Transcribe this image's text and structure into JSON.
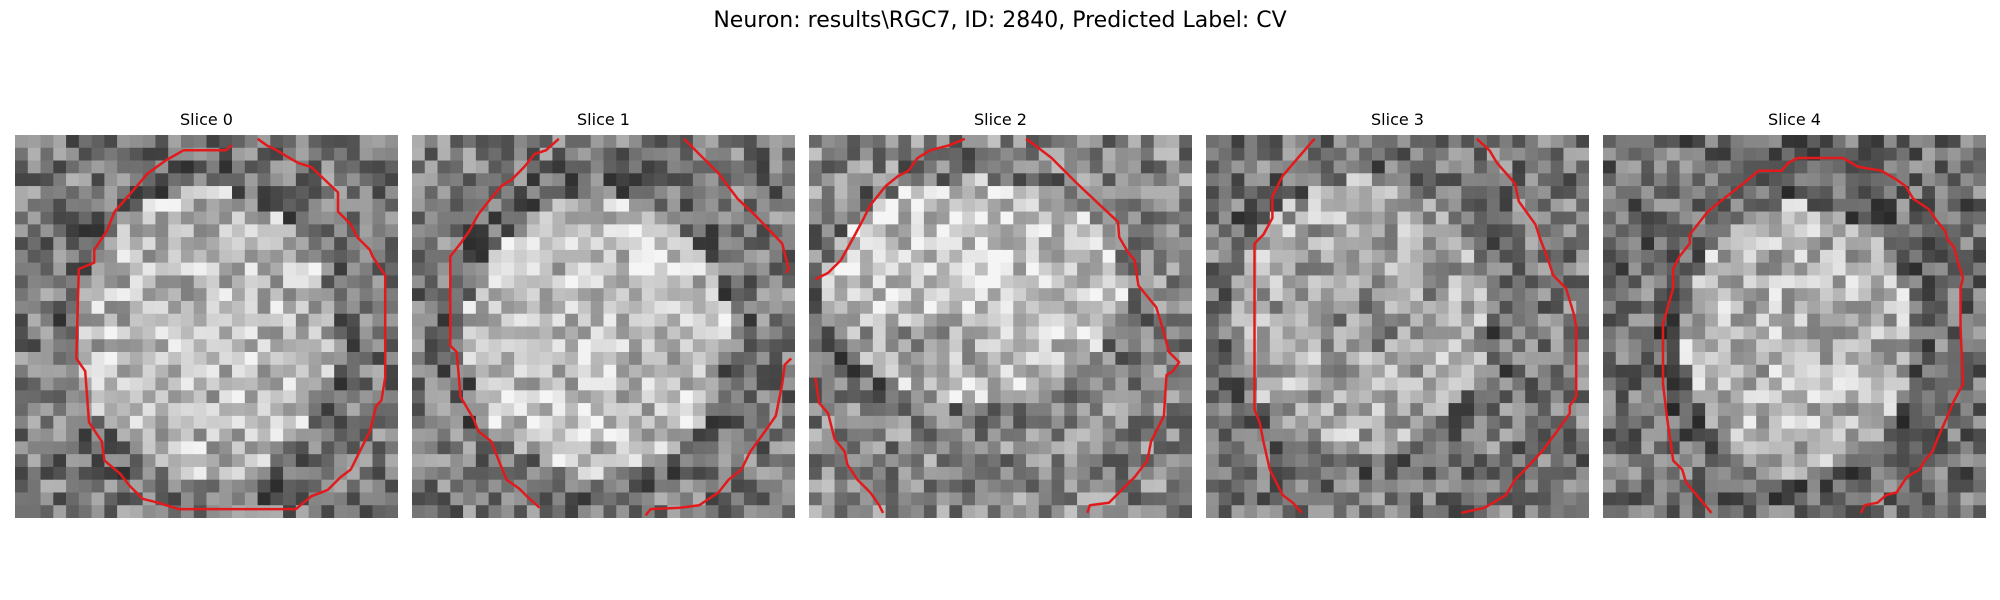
{
  "figure": {
    "title": "Neuron: results\\RGC7, ID: 2840, Predicted Label: CV"
  },
  "slices": [
    {
      "title": "Slice 0"
    },
    {
      "title": "Slice 1"
    },
    {
      "title": "Slice 2"
    },
    {
      "title": "Slice 3"
    },
    {
      "title": "Slice 4"
    }
  ],
  "colors": {
    "contour": "#e31a1c",
    "colormap": "grayscale"
  }
}
